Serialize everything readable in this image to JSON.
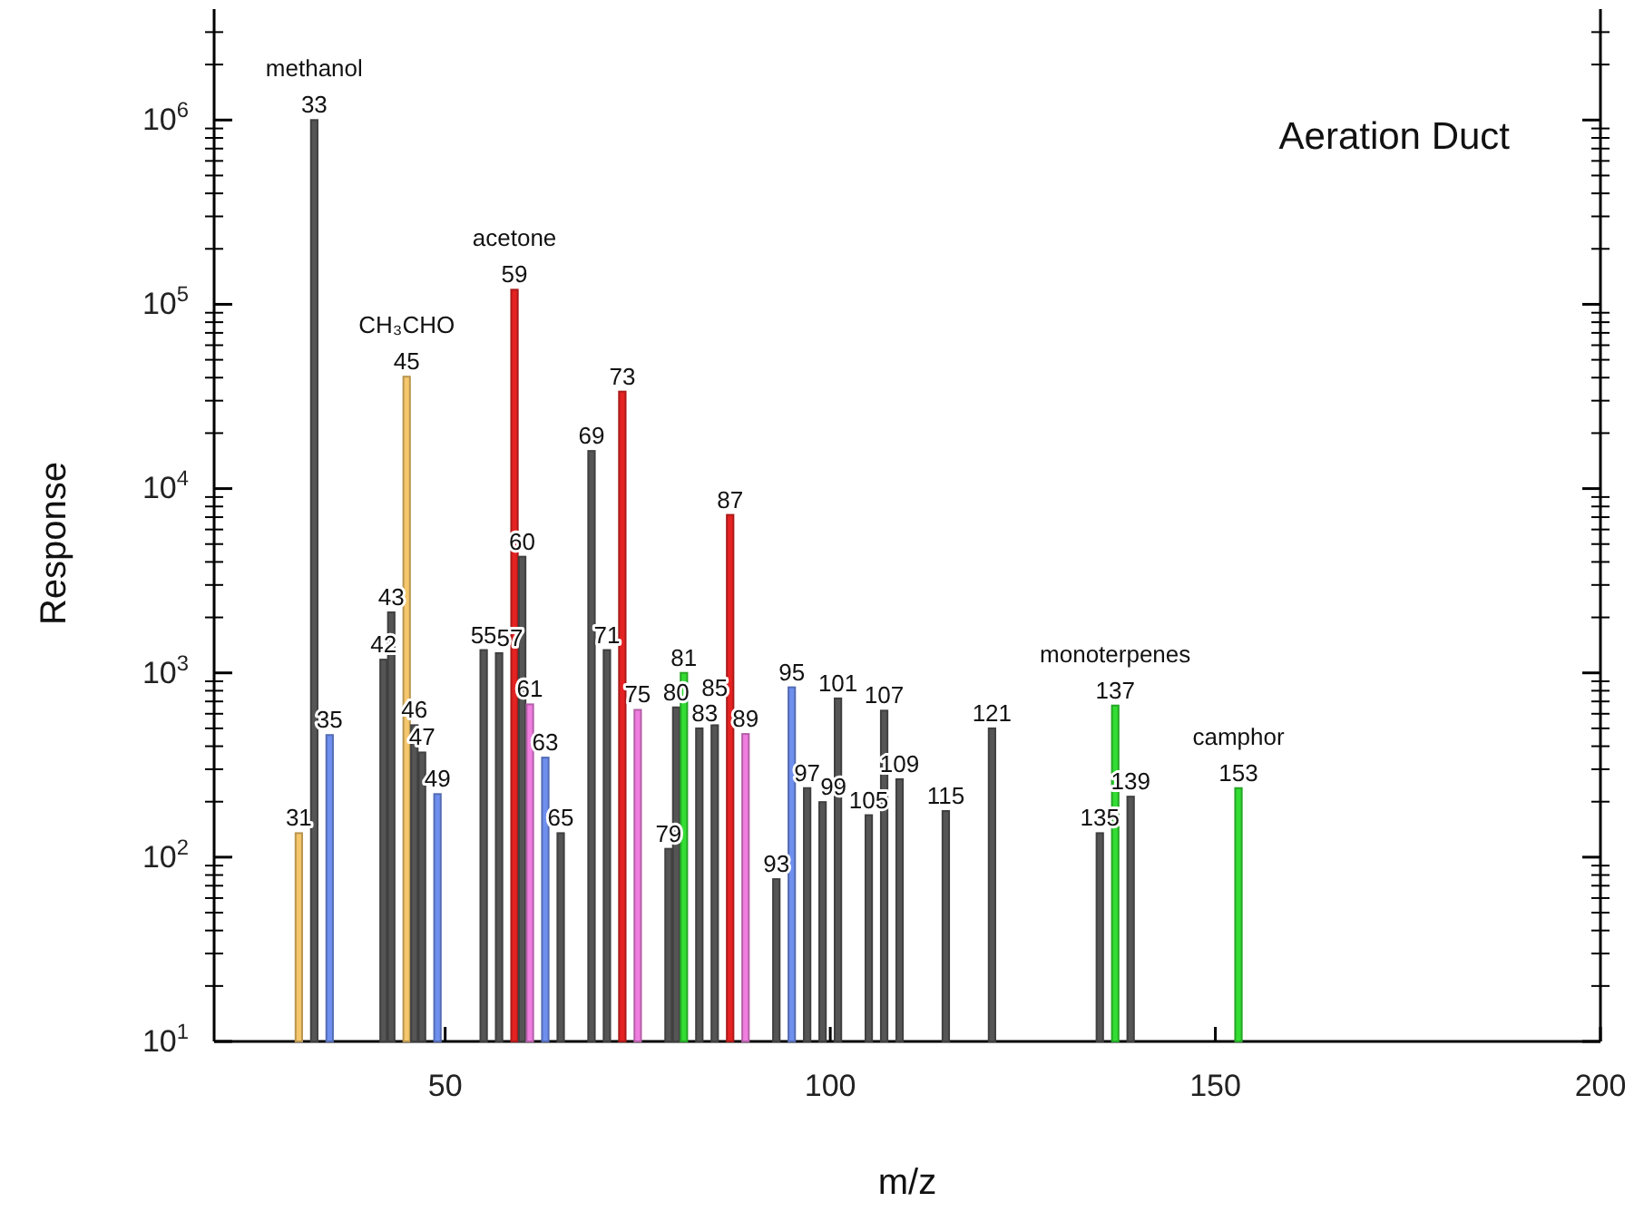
{
  "chart_data": {
    "type": "bar",
    "title": "Aeration Duct",
    "xlabel": "m/z",
    "ylabel": "Response",
    "log": true,
    "xlim": [
      20,
      200
    ],
    "xticks": [
      50,
      100,
      150,
      200
    ],
    "ylim": [
      10,
      4000000
    ],
    "yticks": [
      {
        "value": 10,
        "label": "10$^{1}$"
      },
      {
        "value": 100,
        "label": "10$^{2}$"
      },
      {
        "value": 1000,
        "label": "10$^{3}$"
      },
      {
        "value": 10000,
        "label": "10$^{4}$"
      },
      {
        "value": 100000,
        "label": "10$^{5}$"
      },
      {
        "value": 1000000,
        "label": "10$^{6}$"
      }
    ],
    "x": [
      31,
      33,
      35,
      42,
      43,
      45,
      46,
      47,
      49,
      55,
      57,
      59,
      60,
      61,
      63,
      65,
      69,
      71,
      73,
      75,
      79,
      80,
      81,
      83,
      85,
      87,
      89,
      93,
      95,
      97,
      99,
      101,
      105,
      107,
      109,
      115,
      121,
      135,
      137,
      139,
      153
    ],
    "values": [
      135,
      1000000,
      460,
      1180,
      2130,
      40500,
      520,
      370,
      220,
      1330,
      1280,
      120000,
      4270,
      675,
      347,
      135,
      16000,
      1330,
      33600,
      630,
      111,
      650,
      1000,
      500,
      520,
      7200,
      466,
      76,
      835,
      237,
      199,
      727,
      169,
      624,
      265,
      178,
      500,
      135,
      665,
      213,
      237
    ],
    "colors": [
      "#f5c66b",
      "#555555",
      "#6f8fef",
      "#555555",
      "#555555",
      "#f5c66b",
      "#555555",
      "#555555",
      "#6f8fef",
      "#555555",
      "#555555",
      "#e52222",
      "#555555",
      "#f07ee0",
      "#6f8fef",
      "#555555",
      "#555555",
      "#555555",
      "#e52222",
      "#f07ee0",
      "#555555",
      "#555555",
      "#33dd33",
      "#555555",
      "#555555",
      "#e52222",
      "#f07ee0",
      "#555555",
      "#6f8fef",
      "#555555",
      "#555555",
      "#555555",
      "#555555",
      "#555555",
      "#555555",
      "#555555",
      "#555555",
      "#555555",
      "#33dd33",
      "#555555",
      "#33dd33"
    ],
    "annotations": [
      {
        "text": "31",
        "x": 31,
        "y": 135
      },
      {
        "text": "33",
        "x": 33,
        "y": 1000000
      },
      {
        "text": "35",
        "x": 35,
        "y": 460
      },
      {
        "text": "42",
        "x": 42,
        "y": 1180
      },
      {
        "text": "43",
        "x": 43,
        "y": 2130
      },
      {
        "text": "45",
        "x": 45,
        "y": 40500
      },
      {
        "text": "46",
        "x": 46,
        "y": 520
      },
      {
        "text": "47",
        "x": 47,
        "y": 370
      },
      {
        "text": "49",
        "x": 49,
        "y": 220
      },
      {
        "text": "55",
        "x": 55,
        "y": 1330
      },
      {
        "text": "57",
        "x": 57,
        "y": 1280
      },
      {
        "text": "59",
        "x": 59,
        "y": 120000
      },
      {
        "text": "60",
        "x": 60,
        "y": 4270
      },
      {
        "text": "61",
        "x": 61,
        "y": 675
      },
      {
        "text": "63",
        "x": 63,
        "y": 347
      },
      {
        "text": "65",
        "x": 65,
        "y": 135
      },
      {
        "text": "69",
        "x": 69,
        "y": 16000
      },
      {
        "text": "71",
        "x": 71,
        "y": 1330
      },
      {
        "text": "73",
        "x": 73,
        "y": 33600
      },
      {
        "text": "75",
        "x": 75,
        "y": 630
      },
      {
        "text": "79",
        "x": 79,
        "y": 111
      },
      {
        "text": "80",
        "x": 80,
        "y": 650
      },
      {
        "text": "81",
        "x": 81,
        "y": 1000
      },
      {
        "text": "83",
        "x": 83,
        "y": 500
      },
      {
        "text": "85",
        "x": 85,
        "y": 520
      },
      {
        "text": "87",
        "x": 87,
        "y": 7200
      },
      {
        "text": "89",
        "x": 89,
        "y": 466
      },
      {
        "text": "93",
        "x": 93,
        "y": 76
      },
      {
        "text": "95",
        "x": 95,
        "y": 835
      },
      {
        "text": "97",
        "x": 97,
        "y": 237
      },
      {
        "text": "99",
        "x": 99,
        "y": 199
      },
      {
        "text": "101",
        "x": 101,
        "y": 727
      },
      {
        "text": "105",
        "x": 105,
        "y": 169
      },
      {
        "text": "107",
        "x": 107,
        "y": 624
      },
      {
        "text": "109",
        "x": 109,
        "y": 265
      },
      {
        "text": "115",
        "x": 115,
        "y": 178
      },
      {
        "text": "121",
        "x": 121,
        "y": 500
      },
      {
        "text": "135",
        "x": 135,
        "y": 135
      },
      {
        "text": "137",
        "x": 137,
        "y": 665
      },
      {
        "text": "139",
        "x": 139,
        "y": 213
      },
      {
        "text": "153",
        "x": 153,
        "y": 237
      },
      {
        "text": "methanol",
        "x": 33,
        "y": 1000000
      },
      {
        "text": "CH₃CHO",
        "x": 45,
        "y": 40500
      },
      {
        "text": "acetone",
        "x": 59,
        "y": 120000
      },
      {
        "text": "monoterpenes",
        "x": 137,
        "y": 665
      },
      {
        "text": "camphor",
        "x": 153,
        "y": 237
      }
    ]
  }
}
